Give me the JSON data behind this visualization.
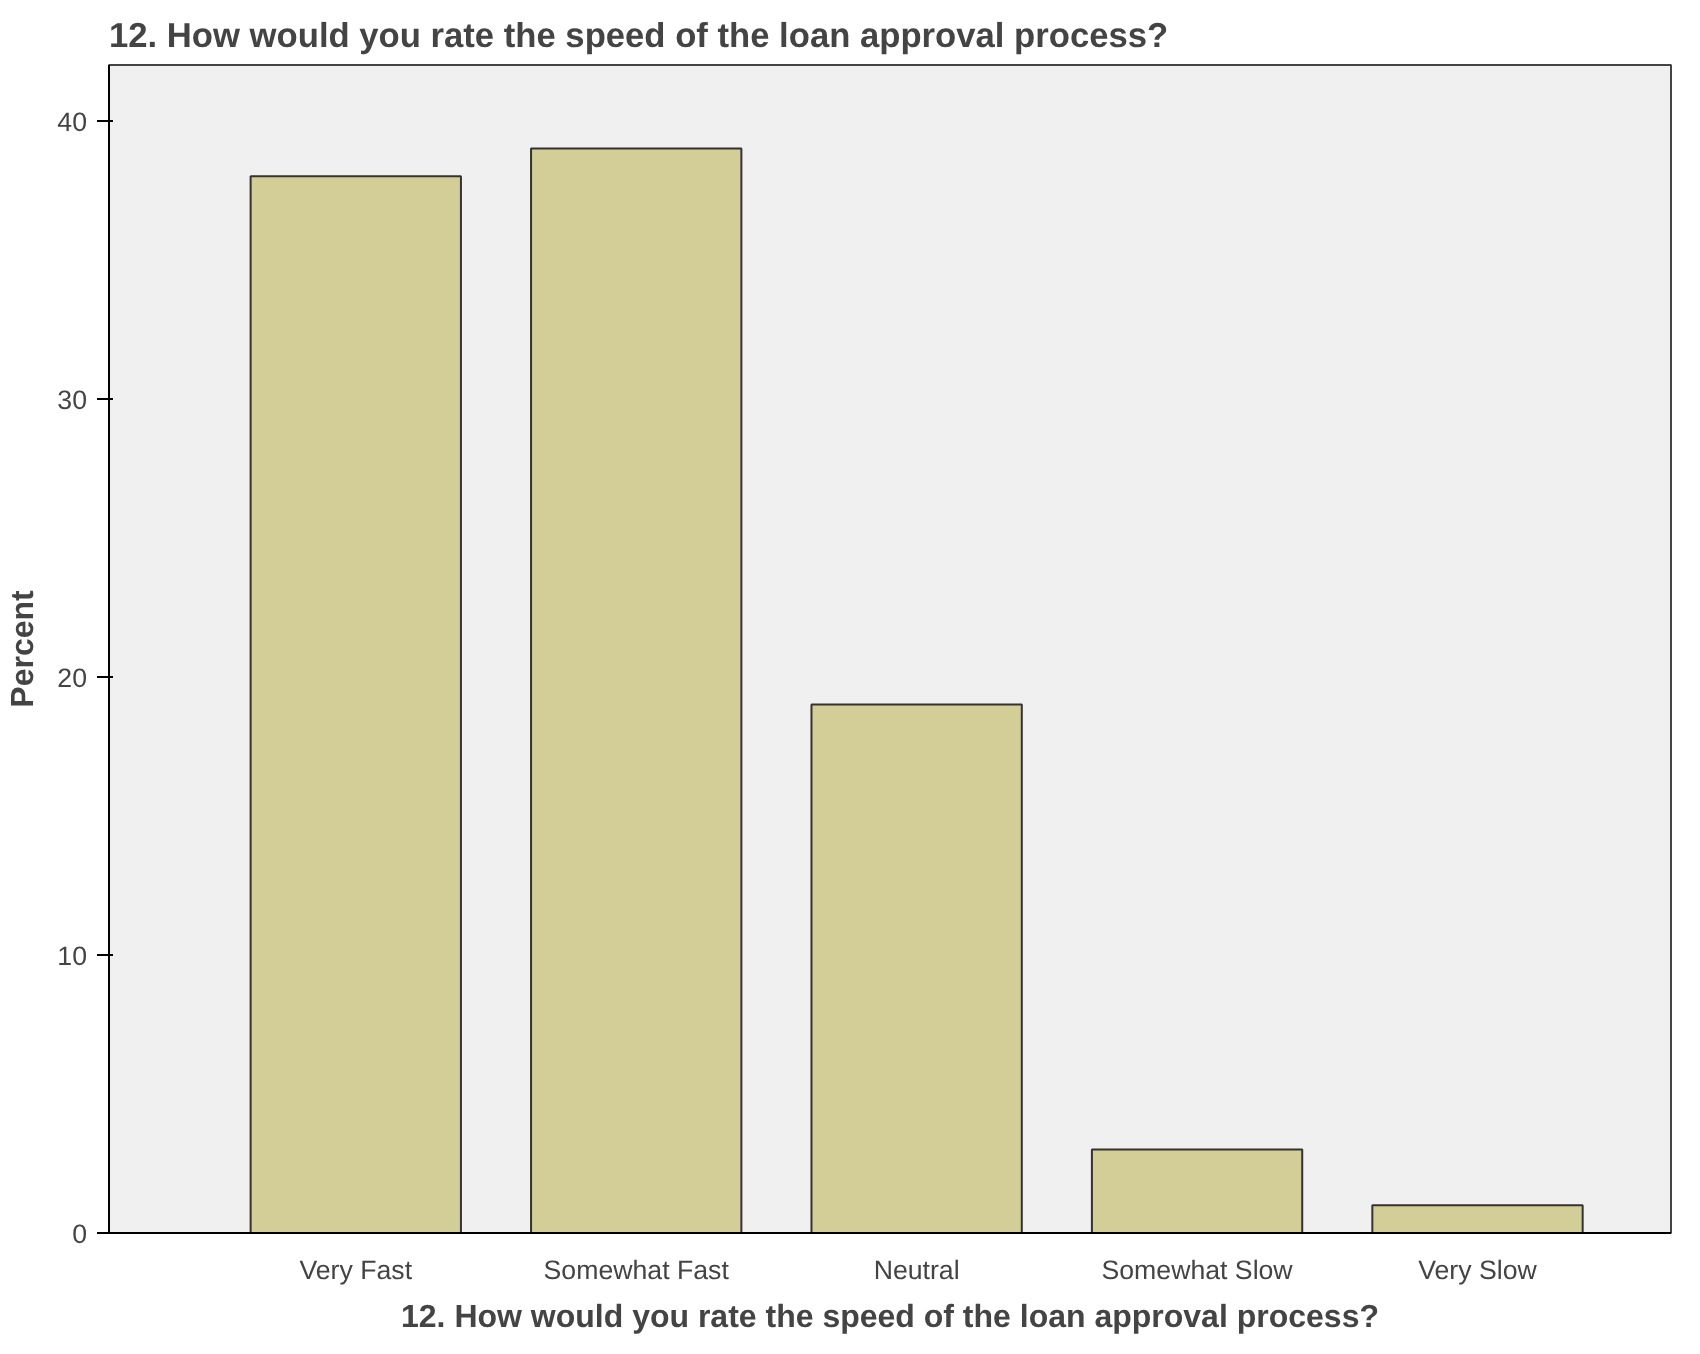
{
  "chart_data": {
    "type": "bar",
    "title": "12. How would you rate the speed of the loan approval process?",
    "xlabel": "12. How would you rate the speed of the loan approval process?",
    "ylabel": "Percent",
    "categories": [
      "Very Fast",
      "Somewhat Fast",
      "Neutral",
      "Somewhat Slow",
      "Very Slow"
    ],
    "values": [
      38,
      39,
      19,
      3,
      1
    ],
    "color": "#d3ce97",
    "ylim": [
      0,
      42
    ],
    "yticks": [
      0,
      10,
      20,
      30,
      40
    ],
    "grid": false
  }
}
